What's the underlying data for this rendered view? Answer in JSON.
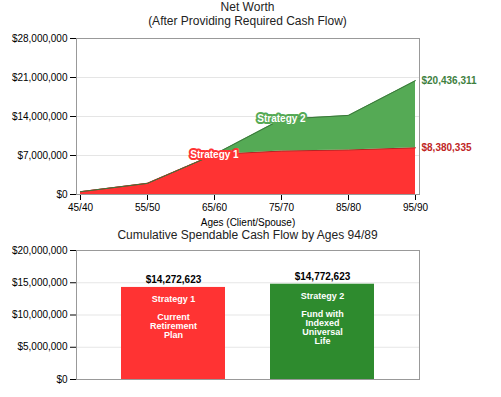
{
  "chart_data": [
    {
      "type": "area",
      "title": "Net Worth\n(After Providing Required Cash Flow)",
      "x_label": "Ages (Client/Spouse)",
      "categories": [
        "45/40",
        "55/50",
        "65/60",
        "75/70",
        "85/80",
        "95/90"
      ],
      "series": [
        {
          "name": "Strategy 1",
          "color": "#FF3333",
          "values": [
            500000,
            2000000,
            7200000,
            7800000,
            8000000,
            8380335
          ],
          "value_labels": [
            null,
            null,
            null,
            null,
            null,
            "$8,380,335"
          ]
        },
        {
          "name": "Strategy 2",
          "color": "#55AA55",
          "values": [
            500000,
            2000000,
            7200000,
            13500000,
            14200000,
            20436311
          ],
          "value_labels": [
            null,
            null,
            null,
            null,
            null,
            "$20,436,311"
          ]
        }
      ],
      "ylim": [
        0,
        28000000
      ],
      "yticks": [
        {
          "value": 0,
          "label": "$0"
        },
        {
          "value": 7000000,
          "label": "$7,000,000"
        },
        {
          "value": 14000000,
          "label": "$14,000,000"
        },
        {
          "value": 21000000,
          "label": "$21,000,000"
        },
        {
          "value": 28000000,
          "label": "$28,000,000"
        }
      ],
      "grid": true
    },
    {
      "type": "bar",
      "title": "Cumulative Spendable Cash Flow by Ages 94/89",
      "categories": [
        "Strategy 1\n\nCurrent\nRetirement\nPlan",
        "Strategy 2\n\nFund with\nIndexed\nUniversal\nLife"
      ],
      "values": [
        14272623,
        14772623
      ],
      "value_labels": [
        "$14,272,623",
        "$14,772,623"
      ],
      "data_labels": true,
      "colors": [
        "#FF3333",
        "#2E8B2E"
      ],
      "ylim": [
        0,
        20000000
      ],
      "yticks": [
        {
          "value": 0,
          "label": "$0"
        },
        {
          "value": 5000000,
          "label": "$5,000,000"
        },
        {
          "value": 10000000,
          "label": "$10,000,000"
        },
        {
          "value": 15000000,
          "label": "$15,000,000"
        },
        {
          "value": 20000000,
          "label": "$20,000,000"
        }
      ],
      "grid": true,
      "tick_labels": "y"
    }
  ]
}
